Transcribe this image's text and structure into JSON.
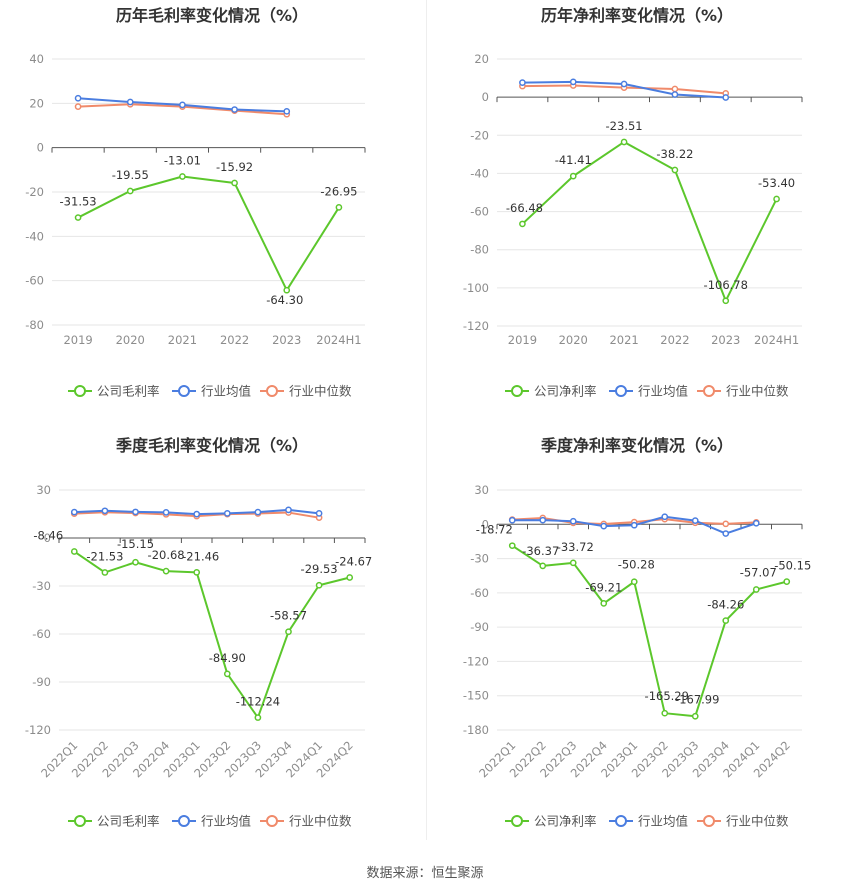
{
  "source_label": "数据来源：恒生聚源",
  "colors": {
    "company": "#5cc72c",
    "industry_avg": "#4a7de0",
    "industry_median": "#f08a6a"
  },
  "chart_data": [
    {
      "type": "line",
      "title": "历年毛利率变化情况（%）",
      "categories": [
        "2019",
        "2020",
        "2021",
        "2022",
        "2023",
        "2024H1"
      ],
      "ylim": [
        -80,
        40
      ],
      "yticks": [
        40,
        20,
        0,
        -20,
        -40,
        -60,
        -80
      ],
      "rotate_x": false,
      "series": [
        {
          "name": "公司毛利率",
          "key": "company",
          "values": [
            -31.53,
            -19.55,
            -13.01,
            -15.92,
            -64.3,
            -26.95
          ],
          "labels": [
            "-31.53",
            "-19.55",
            "-13.01",
            "-15.92",
            "-64.30",
            "-26.95"
          ]
        },
        {
          "name": "行业均值",
          "key": "industry_avg",
          "values": [
            22.3,
            20.6,
            19.3,
            17.2,
            16.4,
            null
          ]
        },
        {
          "name": "行业中位数",
          "key": "industry_median",
          "values": [
            18.5,
            19.6,
            18.5,
            16.7,
            15.1,
            null
          ]
        }
      ]
    },
    {
      "type": "line",
      "title": "历年净利率变化情况（%）",
      "categories": [
        "2019",
        "2020",
        "2021",
        "2022",
        "2023",
        "2024H1"
      ],
      "ylim": [
        -120,
        20
      ],
      "yticks": [
        20,
        0,
        -20,
        -40,
        -60,
        -80,
        -100,
        -120
      ],
      "rotate_x": false,
      "series": [
        {
          "name": "公司净利率",
          "key": "company",
          "values": [
            -66.48,
            -41.41,
            -23.51,
            -38.22,
            -106.78,
            -53.4
          ],
          "labels": [
            "-66.48",
            "-41.41",
            "-23.51",
            "-38.22",
            "-106.78",
            "-53.40"
          ]
        },
        {
          "name": "行业均值",
          "key": "industry_avg",
          "values": [
            7.6,
            8.0,
            6.9,
            1.4,
            -0.2,
            null
          ]
        },
        {
          "name": "行业中位数",
          "key": "industry_median",
          "values": [
            5.8,
            6.1,
            5.0,
            4.3,
            2.0,
            null
          ]
        }
      ]
    },
    {
      "type": "line",
      "title": "季度毛利率变化情况（%）",
      "categories": [
        "2022Q1",
        "2022Q2",
        "2022Q3",
        "2022Q4",
        "2023Q1",
        "2023Q2",
        "2023Q3",
        "2023Q4",
        "2024Q1",
        "2024Q2"
      ],
      "ylim": [
        -120,
        30
      ],
      "yticks": [
        30,
        0,
        -30,
        -60,
        -90,
        -120
      ],
      "rotate_x": true,
      "series": [
        {
          "name": "公司毛利率",
          "key": "company",
          "values": [
            -8.46,
            -21.53,
            -15.15,
            -20.68,
            -21.46,
            -84.9,
            -112.24,
            -58.57,
            -29.53,
            -24.67
          ],
          "labels": [
            "-8.46",
            "-21.53",
            "-15.15",
            "-20.68",
            "-21.46",
            "-84.90",
            "-112.24",
            "-58.57",
            "-29.53",
            "-24.67"
          ]
        },
        {
          "name": "行业均值",
          "key": "industry_avg",
          "values": [
            16.2,
            17.0,
            16.3,
            16.0,
            14.9,
            15.4,
            16.2,
            17.6,
            15.4,
            null
          ]
        },
        {
          "name": "行业中位数",
          "key": "industry_median",
          "values": [
            15.2,
            16.1,
            15.6,
            14.8,
            13.7,
            14.9,
            15.3,
            15.9,
            12.7,
            null
          ]
        }
      ]
    },
    {
      "type": "line",
      "title": "季度净利率变化情况（%）",
      "categories": [
        "2022Q1",
        "2022Q2",
        "2022Q3",
        "2022Q4",
        "2023Q1",
        "2023Q2",
        "2023Q3",
        "2023Q4",
        "2024Q1",
        "2024Q2"
      ],
      "ylim": [
        -180,
        30
      ],
      "yticks": [
        30,
        0,
        -30,
        -60,
        -90,
        -120,
        -150,
        -180
      ],
      "rotate_x": true,
      "series": [
        {
          "name": "公司净利率",
          "key": "company",
          "values": [
            -18.72,
            -36.37,
            -33.72,
            -69.21,
            -50.28,
            -165.29,
            -167.99,
            -84.26,
            -57.07,
            -50.15
          ],
          "labels": [
            "-18.72",
            "-36.37",
            "-33.72",
            "-69.21",
            "-50.28",
            "-165.29",
            "-167.99",
            "-84.26",
            "-57.07",
            "-50.15"
          ]
        },
        {
          "name": "行业均值",
          "key": "industry_avg",
          "values": [
            3.5,
            3.6,
            2.7,
            -1.6,
            -0.8,
            6.6,
            3.2,
            -8.1,
            0.9,
            null
          ]
        },
        {
          "name": "行业中位数",
          "key": "industry_median",
          "values": [
            4.1,
            5.5,
            1.2,
            0.3,
            1.9,
            4.5,
            1.3,
            0.4,
            1.7,
            null
          ]
        }
      ]
    }
  ]
}
